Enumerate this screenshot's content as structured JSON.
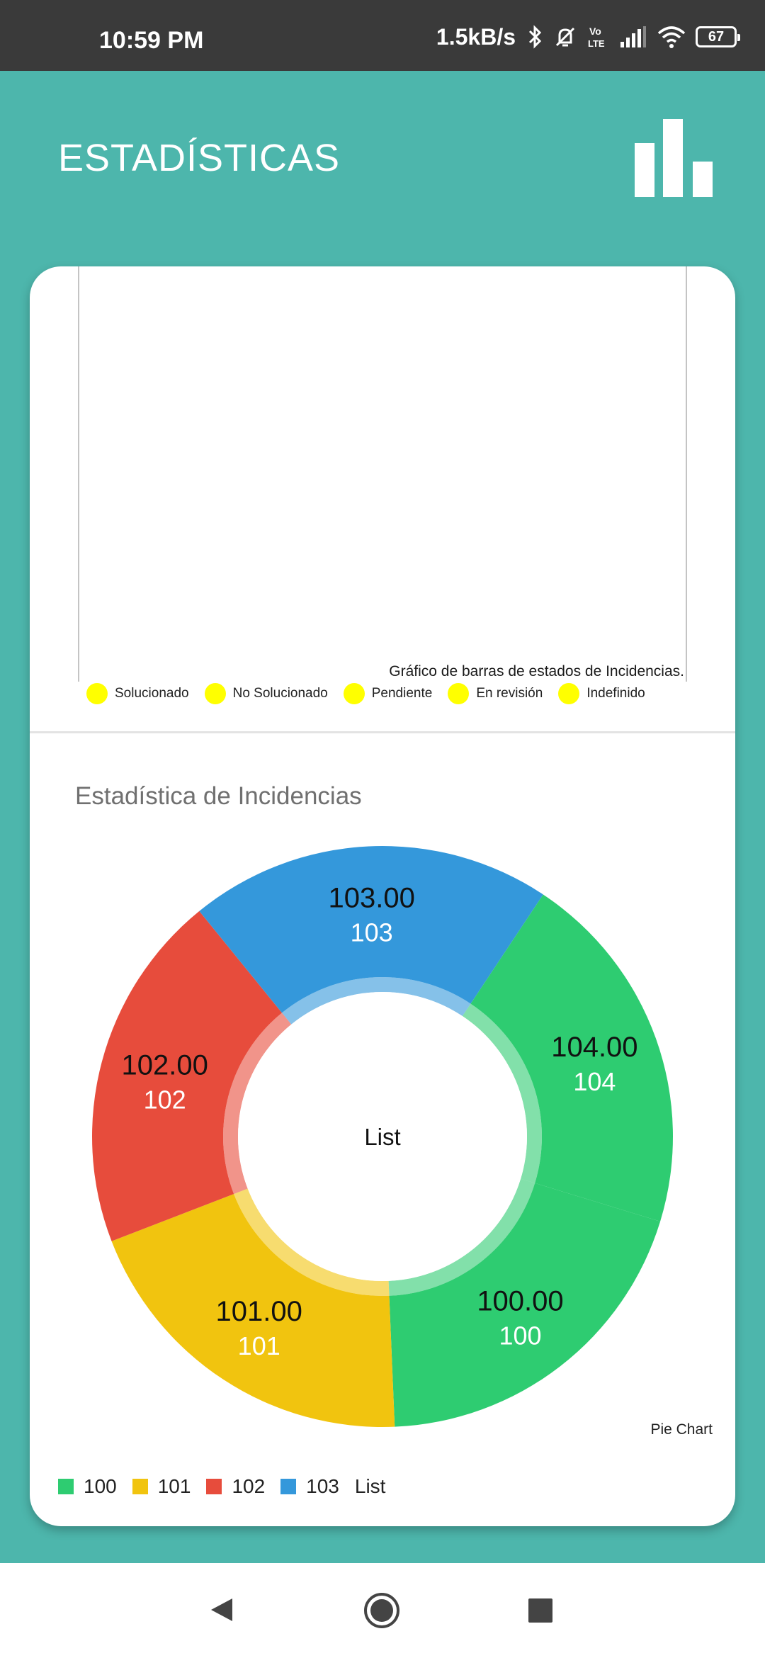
{
  "status_bar": {
    "time": "10:59 PM",
    "net_speed": "1.5kB/s",
    "battery": "67",
    "icons": [
      "bluetooth-icon",
      "mute-icon",
      "volte-icon",
      "signal-icon",
      "wifi-icon",
      "battery-icon"
    ]
  },
  "header": {
    "title": "ESTADÍSTICAS",
    "icon": "bar-chart-icon"
  },
  "bar_chart": {
    "caption": "Gráfico de barras de estados de Incidencias.",
    "legend": [
      {
        "label": "Solucionado",
        "color": "#ffff00"
      },
      {
        "label": "No Solucionado",
        "color": "#ffff00"
      },
      {
        "label": "Pendiente",
        "color": "#ffff00"
      },
      {
        "label": "En revisión",
        "color": "#ffff00"
      },
      {
        "label": "Indefinido",
        "color": "#ffff00"
      }
    ]
  },
  "pie_section": {
    "title": "Estadística de Incidencias",
    "center_label": "List",
    "caption": "Pie Chart",
    "legend_trailing": "List"
  },
  "chart_data": {
    "type": "pie",
    "title": "Estadística de Incidencias",
    "center_text": "List",
    "categories": [
      "100",
      "101",
      "102",
      "103",
      "104"
    ],
    "values": [
      100,
      101,
      102,
      103,
      104
    ],
    "value_labels": [
      "100.00",
      "101.00",
      "102.00",
      "103.00",
      "104.00"
    ],
    "colors": [
      "#2ecc71",
      "#f1c40f",
      "#e74c3c",
      "#3498db",
      "#2ecc71"
    ],
    "legend": [
      "100",
      "101",
      "102",
      "103",
      "List"
    ],
    "legend_colors": [
      "#2ecc71",
      "#f1c40f",
      "#e74c3c",
      "#3498db"
    ]
  },
  "colors": {
    "background": "#4db6ac",
    "status_bar": "#3a3a3a",
    "card": "#ffffff"
  },
  "nav_bar": {
    "icons": [
      "back-icon",
      "home-icon",
      "recents-icon"
    ]
  }
}
